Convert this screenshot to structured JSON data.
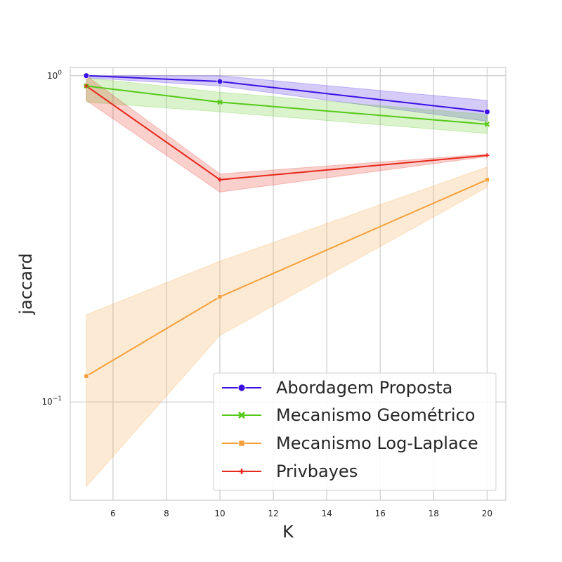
{
  "chart_data": {
    "type": "line",
    "title": "",
    "xlabel": "K",
    "ylabel": "jaccard",
    "y_scale": "log",
    "grid": true,
    "legend_position": "lower-right",
    "xlim": [
      4.4,
      20.7
    ],
    "ylim": [
      0.05,
      1.06
    ],
    "x_ticks": [
      6,
      8,
      10,
      12,
      14,
      16,
      18,
      20
    ],
    "y_ticks": [
      {
        "value": 1.0,
        "base": "10",
        "exp": "0"
      },
      {
        "value": 0.1,
        "base": "10",
        "exp": "−1"
      }
    ],
    "x": [
      5,
      10,
      20
    ],
    "series": [
      {
        "name": "Abordagem Proposta",
        "color": "#3a10e5",
        "marker": "circle",
        "values": [
          1.0,
          0.96,
          0.775
        ],
        "lower": [
          0.985,
          0.93,
          0.725
        ],
        "upper": [
          1.0,
          1.0,
          0.84
        ]
      },
      {
        "name": "Mecanismo Geométrico",
        "color": "#55c918",
        "marker": "x",
        "values": [
          0.93,
          0.83,
          0.71
        ],
        "lower": [
          0.83,
          0.775,
          0.665
        ],
        "upper": [
          0.985,
          0.89,
          0.76
        ]
      },
      {
        "name": "Mecanismo Log-Laplace",
        "color": "#f5a03a",
        "marker": "square",
        "values": [
          0.12,
          0.21,
          0.48
        ],
        "lower": [
          0.055,
          0.16,
          0.455
        ],
        "upper": [
          0.185,
          0.27,
          0.525
        ]
      },
      {
        "name": "Privbayes",
        "color": "#e8281a",
        "marker": "plus",
        "values": [
          0.93,
          0.48,
          0.57
        ],
        "lower": [
          0.84,
          0.44,
          0.565
        ],
        "upper": [
          1.0,
          0.5,
          0.575
        ]
      }
    ]
  }
}
